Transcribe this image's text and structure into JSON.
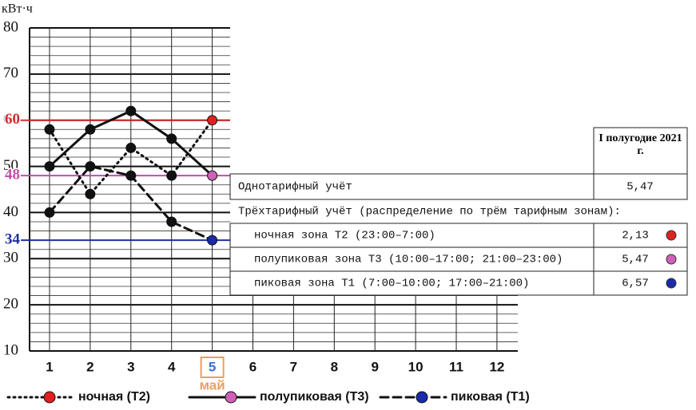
{
  "chart_data": {
    "type": "line",
    "y_label": "кВт·ч",
    "categories": [
      "1",
      "2",
      "3",
      "4",
      "5",
      "6",
      "7",
      "8",
      "9",
      "10",
      "11",
      "12"
    ],
    "highlighted_index": 4,
    "highlight_label": "май",
    "ylim": [
      10,
      80
    ],
    "yticks": [
      10,
      20,
      30,
      40,
      50,
      60,
      70,
      80
    ],
    "minor_grid_step": 2,
    "grid": true,
    "reference_lines": [
      {
        "value": 60,
        "color": "#d62a2a"
      },
      {
        "value": 48,
        "color": "#c84aa8"
      },
      {
        "value": 34,
        "color": "#1f2fa0"
      }
    ],
    "series": [
      {
        "name": "ночная (Т2)",
        "color": "#e02020",
        "line_style": "dotted",
        "values": [
          58,
          44,
          54,
          48,
          60,
          null,
          null,
          null,
          null,
          null,
          null,
          null
        ]
      },
      {
        "name": "полупиковая (Т3)",
        "color": "#d060b8",
        "line_style": "solid",
        "values": [
          50,
          58,
          62,
          56,
          48,
          null,
          null,
          null,
          null,
          null,
          null,
          null
        ]
      },
      {
        "name": "пиковая (Т1)",
        "color": "#1a2aa8",
        "line_style": "dashed",
        "values": [
          40,
          50,
          48,
          38,
          34,
          null,
          null,
          null,
          null,
          null,
          null,
          null
        ]
      }
    ]
  },
  "table": {
    "header": "I полугодие 2021 г.",
    "single": {
      "label": "Однотарифный учёт",
      "value": "5,47"
    },
    "multi_title": "Трёхтарифный учёт (распределение по трём тарифным зонам):",
    "rows": [
      {
        "label": "ночная зона Т2 (23:00–7:00)",
        "value": "2,13",
        "color": "#e02020"
      },
      {
        "label": "полупиковая зона Т3 (10:00–17:00; 21:00–23:00)",
        "value": "5,47",
        "color": "#d060b8"
      },
      {
        "label": "пиковая зона Т1 (7:00–10:00; 17:00–21:00)",
        "value": "6,57",
        "color": "#1a2aa8"
      }
    ]
  }
}
